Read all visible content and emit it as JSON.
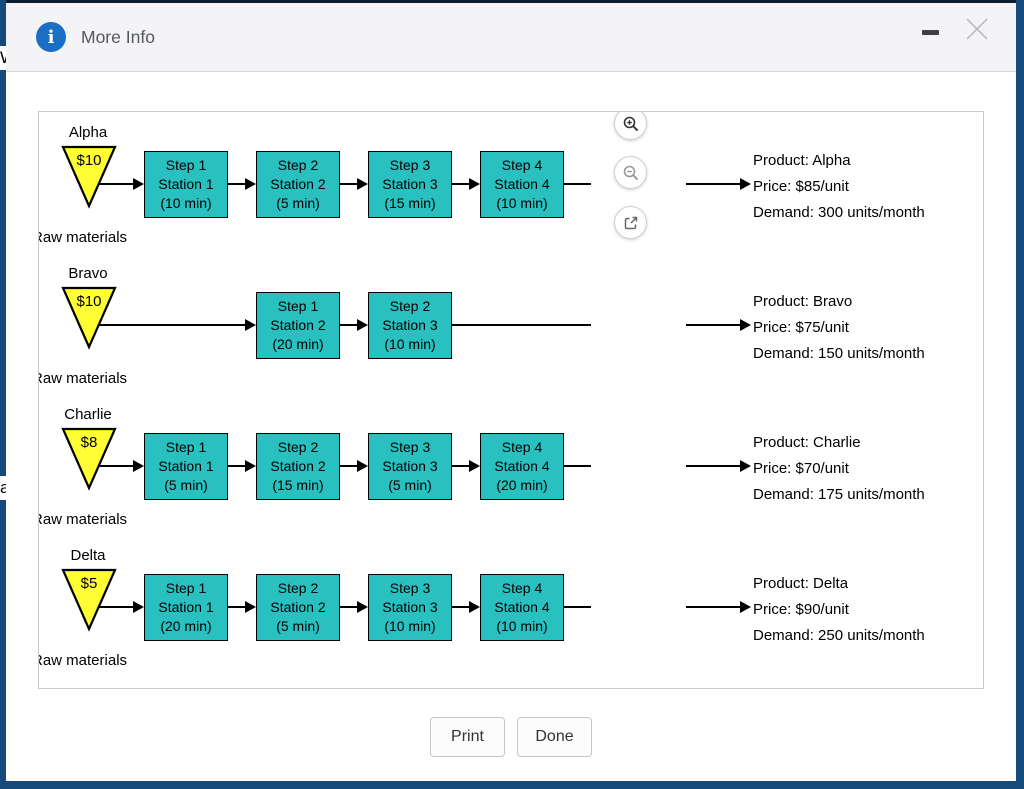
{
  "colors": {
    "page_bg": "#174a7c",
    "header_bg": "#f4f4f6",
    "accent_blue": "#1a6fc4",
    "teal": "#29c0c0",
    "yellow": "#ffff33"
  },
  "header": {
    "title": "More Info"
  },
  "icons": {
    "info": "info-circle",
    "minimize": "minimize-dash",
    "close": "close-x",
    "zoom_in": "magnifier-plus",
    "zoom_out": "magnifier-minus",
    "open_external": "external-link"
  },
  "page_behind": {
    "fragments": [
      "W",
      "a"
    ]
  },
  "diagram": {
    "raw_materials_label": "Raw materials",
    "products": [
      {
        "name": "Alpha",
        "raw_cost": "$10",
        "steps": [
          {
            "step": "Step 1",
            "station": "Station 1",
            "time": "(10 min)",
            "slot": 0
          },
          {
            "step": "Step 2",
            "station": "Station 2",
            "time": "(5 min)",
            "slot": 1
          },
          {
            "step": "Step 3",
            "station": "Station 3",
            "time": "(15 min)",
            "slot": 2
          },
          {
            "step": "Step 4",
            "station": "Station 4",
            "time": "(10 min)",
            "slot": 3
          }
        ],
        "info": {
          "product": "Product: Alpha",
          "price": "Price: $85/unit",
          "demand": "Demand: 300 units/month"
        }
      },
      {
        "name": "Bravo",
        "raw_cost": "$10",
        "steps": [
          {
            "step": "Step 1",
            "station": "Station 2",
            "time": "(20 min)",
            "slot": 1
          },
          {
            "step": "Step 2",
            "station": "Station 3",
            "time": "(10 min)",
            "slot": 2
          }
        ],
        "info": {
          "product": "Product: Bravo",
          "price": "Price: $75/unit",
          "demand": "Demand: 150 units/month"
        }
      },
      {
        "name": "Charlie",
        "raw_cost": "$8",
        "steps": [
          {
            "step": "Step 1",
            "station": "Station 1",
            "time": "(5 min)",
            "slot": 0
          },
          {
            "step": "Step 2",
            "station": "Station 2",
            "time": "(15 min)",
            "slot": 1
          },
          {
            "step": "Step 3",
            "station": "Station 3",
            "time": "(5 min)",
            "slot": 2
          },
          {
            "step": "Step 4",
            "station": "Station 4",
            "time": "(20 min)",
            "slot": 3
          }
        ],
        "info": {
          "product": "Product: Charlie",
          "price": "Price: $70/unit",
          "demand": "Demand: 175 units/month"
        }
      },
      {
        "name": "Delta",
        "raw_cost": "$5",
        "steps": [
          {
            "step": "Step 1",
            "station": "Station 1",
            "time": "(20 min)",
            "slot": 0
          },
          {
            "step": "Step 2",
            "station": "Station 2",
            "time": "(5 min)",
            "slot": 1
          },
          {
            "step": "Step 3",
            "station": "Station 3",
            "time": "(10 min)",
            "slot": 2
          },
          {
            "step": "Step 4",
            "station": "Station 4",
            "time": "(10 min)",
            "slot": 3
          }
        ],
        "info": {
          "product": "Product: Delta",
          "price": "Price: $90/unit",
          "demand": "Demand: 250 units/month"
        }
      }
    ]
  },
  "footer": {
    "print_label": "Print",
    "done_label": "Done"
  }
}
